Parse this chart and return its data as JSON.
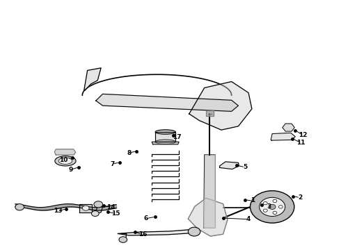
{
  "background_color": "#ffffff",
  "callout_data": {
    "1": {
      "label": [
        0.742,
        0.195
      ],
      "dot": [
        0.72,
        0.198
      ]
    },
    "2": {
      "label": [
        0.882,
        0.207
      ],
      "dot": [
        0.862,
        0.213
      ]
    },
    "3": {
      "label": [
        0.79,
        0.172
      ],
      "dot": [
        0.768,
        0.178
      ]
    },
    "4": {
      "label": [
        0.73,
        0.12
      ],
      "dot": [
        0.655,
        0.125
      ]
    },
    "5": {
      "label": [
        0.72,
        0.33
      ],
      "dot": [
        0.695,
        0.337
      ]
    },
    "6": {
      "label": [
        0.428,
        0.123
      ],
      "dot": [
        0.455,
        0.13
      ]
    },
    "7": {
      "label": [
        0.328,
        0.342
      ],
      "dot": [
        0.35,
        0.35
      ]
    },
    "8": {
      "label": [
        0.378,
        0.387
      ],
      "dot": [
        0.4,
        0.395
      ]
    },
    "9": {
      "label": [
        0.205,
        0.32
      ],
      "dot": [
        0.23,
        0.33
      ]
    },
    "10": {
      "label": [
        0.185,
        0.36
      ],
      "dot": [
        0.21,
        0.368
      ]
    },
    "11": {
      "label": [
        0.885,
        0.428
      ],
      "dot": [
        0.86,
        0.445
      ]
    },
    "12": {
      "label": [
        0.89,
        0.46
      ],
      "dot": [
        0.868,
        0.478
      ]
    },
    "13": {
      "label": [
        0.168,
        0.153
      ],
      "dot": [
        0.193,
        0.162
      ]
    },
    "14": {
      "label": [
        0.325,
        0.168
      ],
      "dot": [
        0.302,
        0.175
      ]
    },
    "15": {
      "label": [
        0.338,
        0.143
      ],
      "dot": [
        0.315,
        0.15
      ]
    },
    "16": {
      "label": [
        0.418,
        0.058
      ],
      "dot": [
        0.395,
        0.068
      ]
    },
    "17": {
      "label": [
        0.52,
        0.452
      ],
      "dot": [
        0.508,
        0.458
      ]
    }
  }
}
